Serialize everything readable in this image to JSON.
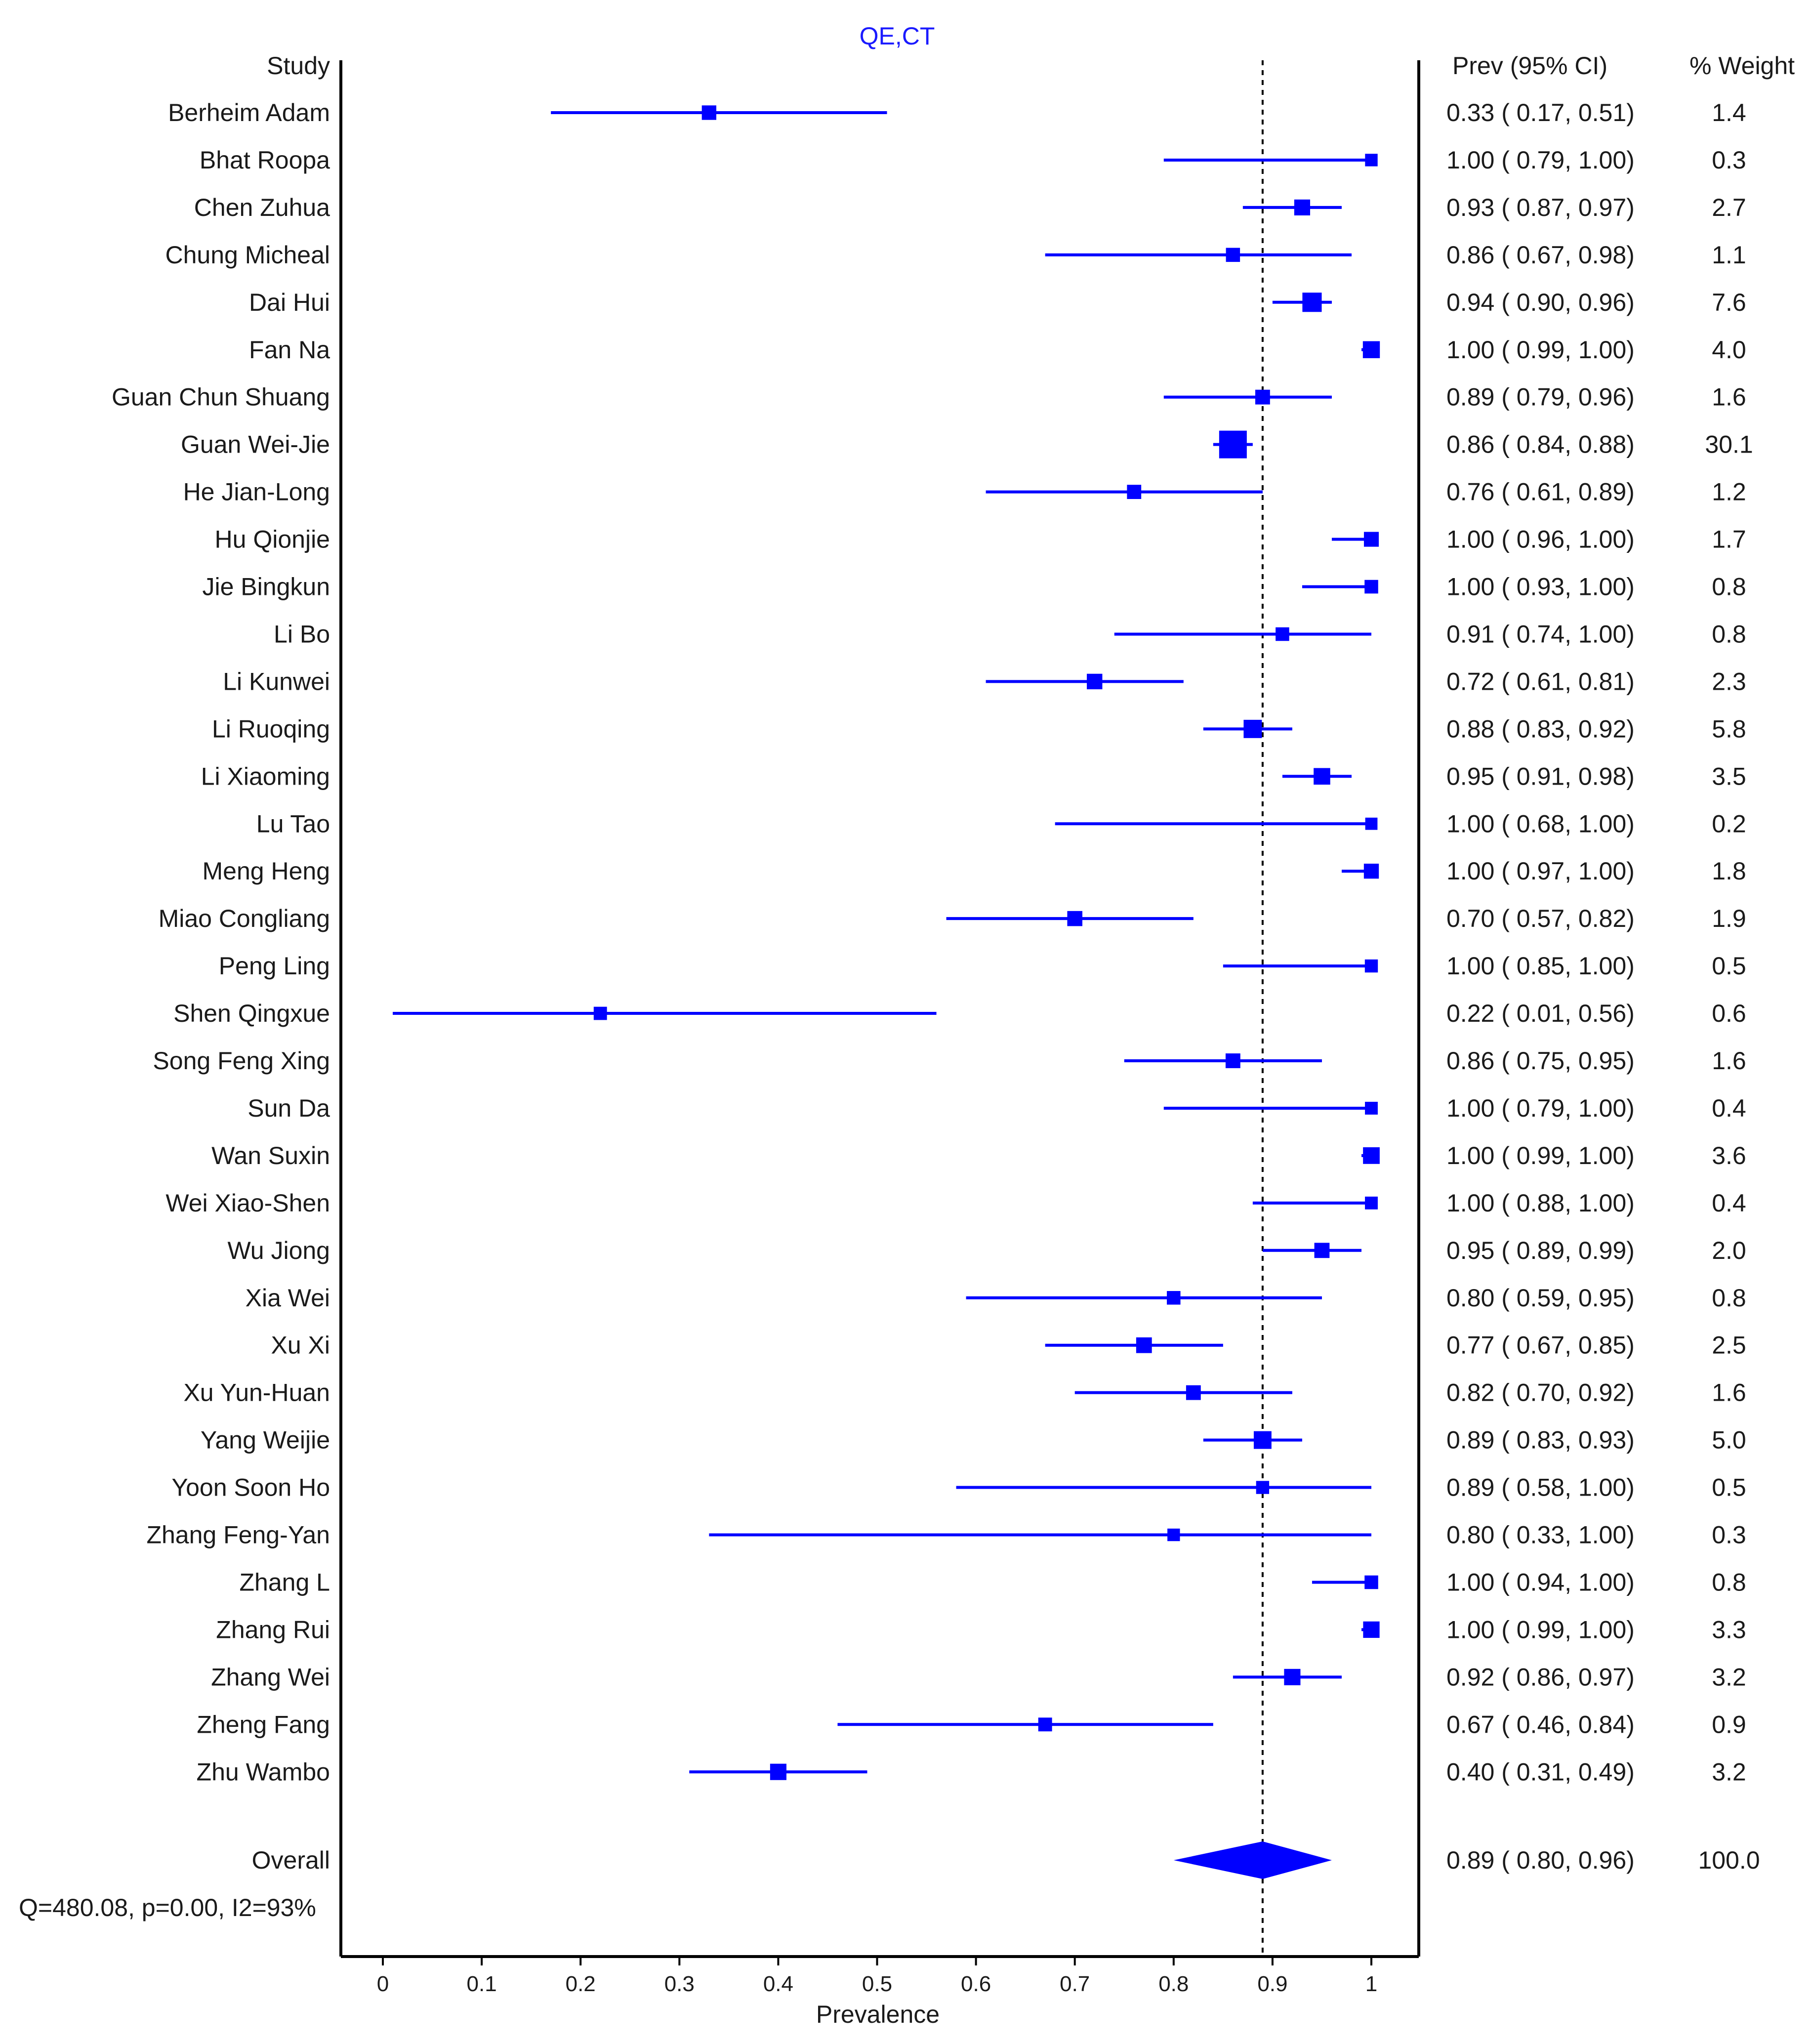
{
  "chart_data": {
    "type": "forest",
    "title": "QE,CT",
    "xlabel": "Prevalence",
    "xlim": [
      -0.04,
      1.05
    ],
    "xticks": [
      0,
      0.1,
      0.2,
      0.3,
      0.4,
      0.5,
      0.6,
      0.7,
      0.8,
      0.9,
      1
    ],
    "xtick_labels": [
      "0",
      "0.1",
      "0.2",
      "0.3",
      "0.4",
      "0.5",
      "0.6",
      "0.7",
      "0.8",
      "0.9",
      "1"
    ],
    "reference_line": 0.89,
    "headers": {
      "study": "Study",
      "estimate": "Prev (95% CI)",
      "weight": "% Weight"
    },
    "heterogeneity": "Q=480.08, p=0.00, I2=93%",
    "colors": {
      "marker": "#0000ff",
      "axis": "#000000",
      "text": "#1a1a1a",
      "title": "#1a1aff"
    },
    "studies": [
      {
        "name": "Berheim Adam",
        "est": 0.33,
        "lo": 0.17,
        "hi": 0.51,
        "est_text": "0.33",
        "lo_text": "0.17",
        "hi_text": "0.51",
        "weight": "1.4"
      },
      {
        "name": "Bhat Roopa",
        "est": 1.0,
        "lo": 0.79,
        "hi": 1.0,
        "est_text": "1.00",
        "lo_text": "0.79",
        "hi_text": "1.00",
        "weight": "0.3"
      },
      {
        "name": "Chen Zuhua",
        "est": 0.93,
        "lo": 0.87,
        "hi": 0.97,
        "est_text": "0.93",
        "lo_text": "0.87",
        "hi_text": "0.97",
        "weight": "2.7"
      },
      {
        "name": "Chung Micheal",
        "est": 0.86,
        "lo": 0.67,
        "hi": 0.98,
        "est_text": "0.86",
        "lo_text": "0.67",
        "hi_text": "0.98",
        "weight": "1.1"
      },
      {
        "name": "Dai Hui",
        "est": 0.94,
        "lo": 0.9,
        "hi": 0.96,
        "est_text": "0.94",
        "lo_text": "0.90",
        "hi_text": "0.96",
        "weight": "7.6"
      },
      {
        "name": "Fan Na",
        "est": 1.0,
        "lo": 0.99,
        "hi": 1.0,
        "est_text": "1.00",
        "lo_text": "0.99",
        "hi_text": "1.00",
        "weight": "4.0"
      },
      {
        "name": "Guan Chun Shuang",
        "est": 0.89,
        "lo": 0.79,
        "hi": 0.96,
        "est_text": "0.89",
        "lo_text": "0.79",
        "hi_text": "0.96",
        "weight": "1.6"
      },
      {
        "name": "Guan Wei-Jie",
        "est": 0.86,
        "lo": 0.84,
        "hi": 0.88,
        "est_text": "0.86",
        "lo_text": "0.84",
        "hi_text": "0.88",
        "weight": "30.1"
      },
      {
        "name": "He Jian-Long",
        "est": 0.76,
        "lo": 0.61,
        "hi": 0.89,
        "est_text": "0.76",
        "lo_text": "0.61",
        "hi_text": "0.89",
        "weight": "1.2"
      },
      {
        "name": "Hu Qionjie",
        "est": 1.0,
        "lo": 0.96,
        "hi": 1.0,
        "est_text": "1.00",
        "lo_text": "0.96",
        "hi_text": "1.00",
        "weight": "1.7"
      },
      {
        "name": "Jie Bingkun",
        "est": 1.0,
        "lo": 0.93,
        "hi": 1.0,
        "est_text": "1.00",
        "lo_text": "0.93",
        "hi_text": "1.00",
        "weight": "0.8"
      },
      {
        "name": "Li Bo",
        "est": 0.91,
        "lo": 0.74,
        "hi": 1.0,
        "est_text": "0.91",
        "lo_text": "0.74",
        "hi_text": "1.00",
        "weight": "0.8"
      },
      {
        "name": "Li Kunwei",
        "est": 0.72,
        "lo": 0.61,
        "hi": 0.81,
        "est_text": "0.72",
        "lo_text": "0.61",
        "hi_text": "0.81",
        "weight": "2.3"
      },
      {
        "name": "Li Ruoqing",
        "est": 0.88,
        "lo": 0.83,
        "hi": 0.92,
        "est_text": "0.88",
        "lo_text": "0.83",
        "hi_text": "0.92",
        "weight": "5.8"
      },
      {
        "name": "Li Xiaoming",
        "est": 0.95,
        "lo": 0.91,
        "hi": 0.98,
        "est_text": "0.95",
        "lo_text": "0.91",
        "hi_text": "0.98",
        "weight": "3.5"
      },
      {
        "name": "Lu Tao",
        "est": 1.0,
        "lo": 0.68,
        "hi": 1.0,
        "est_text": "1.00",
        "lo_text": "0.68",
        "hi_text": "1.00",
        "weight": "0.2"
      },
      {
        "name": "Meng Heng",
        "est": 1.0,
        "lo": 0.97,
        "hi": 1.0,
        "est_text": "1.00",
        "lo_text": "0.97",
        "hi_text": "1.00",
        "weight": "1.8"
      },
      {
        "name": "Miao Congliang",
        "est": 0.7,
        "lo": 0.57,
        "hi": 0.82,
        "est_text": "0.70",
        "lo_text": "0.57",
        "hi_text": "0.82",
        "weight": "1.9"
      },
      {
        "name": "Peng Ling",
        "est": 1.0,
        "lo": 0.85,
        "hi": 1.0,
        "est_text": "1.00",
        "lo_text": "0.85",
        "hi_text": "1.00",
        "weight": "0.5"
      },
      {
        "name": "Shen Qingxue",
        "est": 0.22,
        "lo": 0.01,
        "hi": 0.56,
        "est_text": "0.22",
        "lo_text": "0.01",
        "hi_text": "0.56",
        "weight": "0.6"
      },
      {
        "name": "Song Feng Xing",
        "est": 0.86,
        "lo": 0.75,
        "hi": 0.95,
        "est_text": "0.86",
        "lo_text": "0.75",
        "hi_text": "0.95",
        "weight": "1.6"
      },
      {
        "name": "Sun Da",
        "est": 1.0,
        "lo": 0.79,
        "hi": 1.0,
        "est_text": "1.00",
        "lo_text": "0.79",
        "hi_text": "1.00",
        "weight": "0.4"
      },
      {
        "name": "Wan Suxin",
        "est": 1.0,
        "lo": 0.99,
        "hi": 1.0,
        "est_text": "1.00",
        "lo_text": "0.99",
        "hi_text": "1.00",
        "weight": "3.6"
      },
      {
        "name": "Wei Xiao-Shen",
        "est": 1.0,
        "lo": 0.88,
        "hi": 1.0,
        "est_text": "1.00",
        "lo_text": "0.88",
        "hi_text": "1.00",
        "weight": "0.4"
      },
      {
        "name": "Wu Jiong",
        "est": 0.95,
        "lo": 0.89,
        "hi": 0.99,
        "est_text": "0.95",
        "lo_text": "0.89",
        "hi_text": "0.99",
        "weight": "2.0"
      },
      {
        "name": "Xia Wei",
        "est": 0.8,
        "lo": 0.59,
        "hi": 0.95,
        "est_text": "0.80",
        "lo_text": "0.59",
        "hi_text": "0.95",
        "weight": "0.8"
      },
      {
        "name": "Xu Xi",
        "est": 0.77,
        "lo": 0.67,
        "hi": 0.85,
        "est_text": "0.77",
        "lo_text": "0.67",
        "hi_text": "0.85",
        "weight": "2.5"
      },
      {
        "name": "Xu Yun-Huan",
        "est": 0.82,
        "lo": 0.7,
        "hi": 0.92,
        "est_text": "0.82",
        "lo_text": "0.70",
        "hi_text": "0.92",
        "weight": "1.6"
      },
      {
        "name": "Yang Weijie",
        "est": 0.89,
        "lo": 0.83,
        "hi": 0.93,
        "est_text": "0.89",
        "lo_text": "0.83",
        "hi_text": "0.93",
        "weight": "5.0"
      },
      {
        "name": "Yoon Soon Ho",
        "est": 0.89,
        "lo": 0.58,
        "hi": 1.0,
        "est_text": "0.89",
        "lo_text": "0.58",
        "hi_text": "1.00",
        "weight": "0.5"
      },
      {
        "name": "Zhang Feng-Yan",
        "est": 0.8,
        "lo": 0.33,
        "hi": 1.0,
        "est_text": "0.80",
        "lo_text": "0.33",
        "hi_text": "1.00",
        "weight": "0.3"
      },
      {
        "name": "Zhang L",
        "est": 1.0,
        "lo": 0.94,
        "hi": 1.0,
        "est_text": "1.00",
        "lo_text": "0.94",
        "hi_text": "1.00",
        "weight": "0.8"
      },
      {
        "name": "Zhang Rui",
        "est": 1.0,
        "lo": 0.99,
        "hi": 1.0,
        "est_text": "1.00",
        "lo_text": "0.99",
        "hi_text": "1.00",
        "weight": "3.3"
      },
      {
        "name": "Zhang Wei",
        "est": 0.92,
        "lo": 0.86,
        "hi": 0.97,
        "est_text": "0.92",
        "lo_text": "0.86",
        "hi_text": "0.97",
        "weight": "3.2"
      },
      {
        "name": "Zheng Fang",
        "est": 0.67,
        "lo": 0.46,
        "hi": 0.84,
        "est_text": "0.67",
        "lo_text": "0.46",
        "hi_text": "0.84",
        "weight": "0.9"
      },
      {
        "name": "Zhu Wambo",
        "est": 0.4,
        "lo": 0.31,
        "hi": 0.49,
        "est_text": "0.40",
        "lo_text": "0.31",
        "hi_text": "0.49",
        "weight": "3.2"
      }
    ],
    "overall": {
      "name": "Overall",
      "est": 0.89,
      "lo": 0.8,
      "hi": 0.96,
      "est_text": "0.89",
      "lo_text": "0.80",
      "hi_text": "0.96",
      "weight": "100.0"
    }
  }
}
